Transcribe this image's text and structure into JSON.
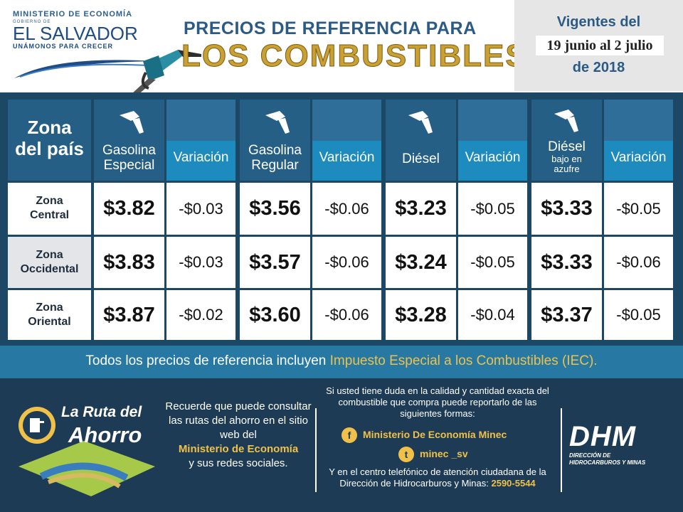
{
  "header": {
    "ministry": "MINISTERIO DE ECONOMÍA",
    "gobierno": "GOBIERNO DE",
    "country": "EL SALVADOR",
    "motto": "UNÁMONOS PARA CRECER",
    "title_line1": "PRECIOS DE REFERENCIA PARA",
    "title_line2": "LOS COMBUSTIBLES",
    "validity_line1": "Vigentes del",
    "validity_dates": "19 junio al 2 julio",
    "validity_line3": "de 2018"
  },
  "table": {
    "zone_header": [
      "Zona",
      "del país"
    ],
    "variation_label": "Variación",
    "fuels": [
      {
        "name": [
          "Gasolina",
          "Especial"
        ]
      },
      {
        "name": [
          "Gasolina",
          "Regular"
        ]
      },
      {
        "name": [
          "Diésel"
        ]
      },
      {
        "name": [
          "Diésel"
        ],
        "sub": [
          "bajo en",
          "azufre"
        ]
      }
    ],
    "rows": [
      {
        "zone": [
          "Zona",
          "Central"
        ],
        "prices": [
          "$3.82",
          "$3.56",
          "$3.23",
          "$3.33"
        ],
        "variations": [
          "-$0.03",
          "-$0.06",
          "-$0.05",
          "-$0.05"
        ]
      },
      {
        "zone": [
          "Zona",
          "Occidental"
        ],
        "prices": [
          "$3.83",
          "$3.57",
          "$3.24",
          "$3.33"
        ],
        "variations": [
          "-$0.03",
          "-$0.06",
          "-$0.05",
          "-$0.06"
        ]
      },
      {
        "zone": [
          "Zona",
          "Oriental"
        ],
        "prices": [
          "$3.87",
          "$3.60",
          "$3.28",
          "$3.37"
        ],
        "variations": [
          "-$0.02",
          "-$0.06",
          "-$0.04",
          "-$0.05"
        ]
      }
    ]
  },
  "note": {
    "text_before": "Todos los precios de referencia incluyen ",
    "highlight": "Impuesto Especial a los Combustibles (IEC)."
  },
  "footer": {
    "ruta_logo_line1": "La Ruta del",
    "ruta_logo_line2": "Ahorro",
    "ruta_text_before": "Recuerde que puede consultar las rutas del ahorro en el sitio web del",
    "ruta_text_highlight": "Ministerio de Economía",
    "ruta_text_after": "y sus redes sociales.",
    "contact_text": "Si usted tiene duda en la calidad y cantidad exacta del combustible que compra puede reportarlo de las siguientes formas:",
    "facebook": "Ministerio De Economía Minec",
    "twitter": "minec _sv",
    "phone_text": "Y en el centro telefónico de atención ciudadana de la Dirección de Hidrocarburos y Minas:",
    "phone_number": "2590-5544",
    "dhm_letters": "DHM",
    "dhm_sub1": "DIRECCIÓN DE",
    "dhm_sub2": "HIDROCARBUROS Y MINAS"
  },
  "colors": {
    "title_blue": "#2b5a85",
    "title_gold": "#c9a033",
    "table_bg": "#1c4765",
    "variation_blue": "#1d8bbd",
    "highlight_yellow": "#f0c14a"
  }
}
